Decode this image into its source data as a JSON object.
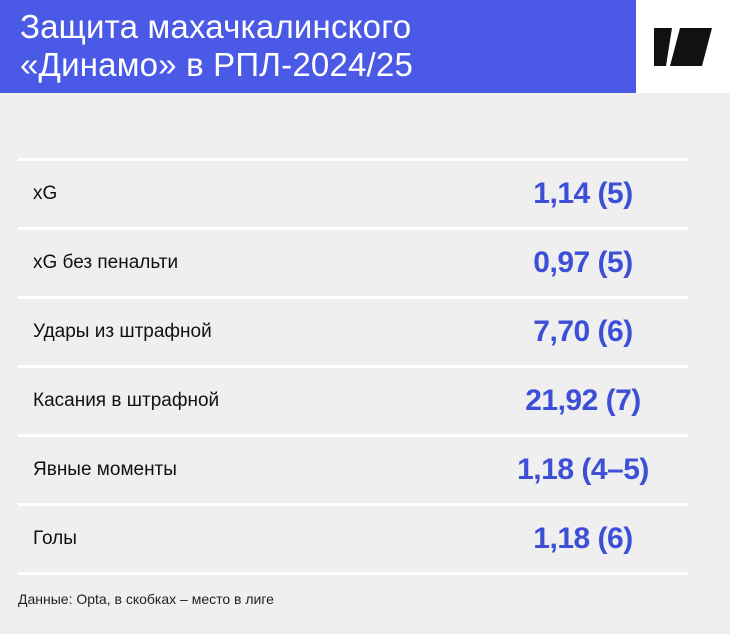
{
  "header": {
    "title_line1": "Защита махачкалинского",
    "title_line2": "«Динамо» в РПЛ-2024/25",
    "logo_icon": "brand-logo-icon",
    "accent_color": "#4b5ae6"
  },
  "rows": [
    {
      "label": "xG",
      "value": "1,14 (5)"
    },
    {
      "label": "xG без пенальти",
      "value": "0,97 (5)"
    },
    {
      "label": "Удары из штрафной",
      "value": "7,70 (6)"
    },
    {
      "label": "Касания в штрафной",
      "value": "21,92 (7)"
    },
    {
      "label": "Явные моменты",
      "value": "1,18 (4–5)"
    },
    {
      "label": "Голы",
      "value": "1,18 (6)"
    }
  ],
  "footnote": "Данные: Opta, в скобках – место в лиге"
}
